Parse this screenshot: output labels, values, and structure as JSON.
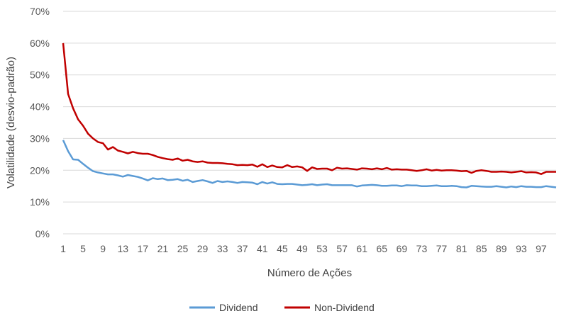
{
  "chart_data": {
    "type": "line",
    "title": "",
    "xlabel": "Número de Ações",
    "ylabel": "Volatilidade (desvio-padrão)",
    "ylim": [
      0,
      70
    ],
    "y_ticks": [
      0,
      10,
      20,
      30,
      40,
      50,
      60,
      70
    ],
    "y_tick_labels": [
      "0%",
      "10%",
      "20%",
      "30%",
      "40%",
      "50%",
      "60%",
      "70%"
    ],
    "x_tick_labels": [
      "1",
      "5",
      "9",
      "13",
      "17",
      "21",
      "25",
      "29",
      "33",
      "37",
      "41",
      "45",
      "49",
      "53",
      "57",
      "61",
      "65",
      "69",
      "73",
      "77",
      "81",
      "85",
      "89",
      "93",
      "97"
    ],
    "xlim": [
      1,
      100
    ],
    "grid": true,
    "legend_position": "bottom",
    "series": [
      {
        "name": "Dividend",
        "color": "#5b9bd5",
        "x": [
          1,
          2,
          3,
          4,
          5,
          6,
          7,
          8,
          9,
          10,
          11,
          12,
          13,
          14,
          15,
          16,
          17,
          18,
          19,
          20,
          21,
          22,
          23,
          24,
          25,
          26,
          27,
          28,
          29,
          30,
          31,
          32,
          33,
          34,
          35,
          36,
          37,
          38,
          39,
          40,
          41,
          42,
          43,
          44,
          45,
          46,
          47,
          48,
          49,
          50,
          51,
          52,
          53,
          54,
          55,
          56,
          57,
          58,
          59,
          60,
          61,
          62,
          63,
          64,
          65,
          66,
          67,
          68,
          69,
          70,
          71,
          72,
          73,
          74,
          75,
          76,
          77,
          78,
          79,
          80,
          81,
          82,
          83,
          84,
          85,
          86,
          87,
          88,
          89,
          90,
          91,
          92,
          93,
          94,
          95,
          96,
          97,
          98,
          99,
          100
        ],
        "values": [
          29.5,
          26,
          23.4,
          23.3,
          22,
          20.8,
          19.7,
          19.3,
          19,
          18.7,
          18.7,
          18.4,
          18,
          18.5,
          18.2,
          17.9,
          17.4,
          16.8,
          17.5,
          17.2,
          17.4,
          16.9,
          17,
          17.2,
          16.7,
          17,
          16.3,
          16.6,
          16.9,
          16.5,
          16,
          16.6,
          16.3,
          16.5,
          16.3,
          16,
          16.3,
          16.2,
          16.1,
          15.6,
          16.3,
          15.8,
          16.2,
          15.7,
          15.6,
          15.7,
          15.7,
          15.5,
          15.3,
          15.4,
          15.6,
          15.3,
          15.5,
          15.6,
          15.3,
          15.3,
          15.3,
          15.3,
          15.3,
          14.9,
          15.2,
          15.3,
          15.4,
          15.3,
          15.1,
          15.1,
          15.2,
          15.2,
          15,
          15.3,
          15.2,
          15.2,
          15,
          15,
          15.1,
          15.2,
          15,
          15,
          15.1,
          15,
          14.7,
          14.6,
          15.1,
          15,
          14.9,
          14.8,
          14.8,
          15,
          14.8,
          14.6,
          14.9,
          14.7,
          15,
          14.8,
          14.8,
          14.7,
          14.7,
          15,
          14.8,
          14.6
        ]
      },
      {
        "name": "Non-Dividend",
        "color": "#c00000",
        "x": [
          1,
          2,
          3,
          4,
          5,
          6,
          7,
          8,
          9,
          10,
          11,
          12,
          13,
          14,
          15,
          16,
          17,
          18,
          19,
          20,
          21,
          22,
          23,
          24,
          25,
          26,
          27,
          28,
          29,
          30,
          31,
          32,
          33,
          34,
          35,
          36,
          37,
          38,
          39,
          40,
          41,
          42,
          43,
          44,
          45,
          46,
          47,
          48,
          49,
          50,
          51,
          52,
          53,
          54,
          55,
          56,
          57,
          58,
          59,
          60,
          61,
          62,
          63,
          64,
          65,
          66,
          67,
          68,
          69,
          70,
          71,
          72,
          73,
          74,
          75,
          76,
          77,
          78,
          79,
          80,
          81,
          82,
          83,
          84,
          85,
          86,
          87,
          88,
          89,
          90,
          91,
          92,
          93,
          94,
          95,
          96,
          97,
          98,
          99,
          100
        ],
        "values": [
          60,
          44,
          39.5,
          36,
          34,
          31.5,
          30,
          28.9,
          28.5,
          26.5,
          27.3,
          26.2,
          25.8,
          25.3,
          25.8,
          25.4,
          25.2,
          25.2,
          24.8,
          24.2,
          23.8,
          23.5,
          23.3,
          23.7,
          23,
          23.3,
          22.8,
          22.6,
          22.8,
          22.4,
          22.3,
          22.3,
          22.2,
          22,
          21.9,
          21.6,
          21.7,
          21.6,
          21.8,
          21.1,
          21.9,
          21,
          21.5,
          21,
          20.9,
          21.6,
          21,
          21.2,
          20.9,
          19.8,
          20.9,
          20.4,
          20.5,
          20.5,
          20,
          20.8,
          20.5,
          20.6,
          20.4,
          20.2,
          20.6,
          20.5,
          20.3,
          20.6,
          20.3,
          20.7,
          20.2,
          20.3,
          20.2,
          20.2,
          20,
          19.8,
          20,
          20.3,
          19.9,
          20.1,
          19.9,
          20,
          20,
          19.9,
          19.7,
          19.8,
          19.2,
          19.8,
          20,
          19.8,
          19.5,
          19.5,
          19.6,
          19.5,
          19.3,
          19.5,
          19.7,
          19.3,
          19.4,
          19.3,
          18.8,
          19.5,
          19.5,
          19.5
        ]
      }
    ]
  }
}
